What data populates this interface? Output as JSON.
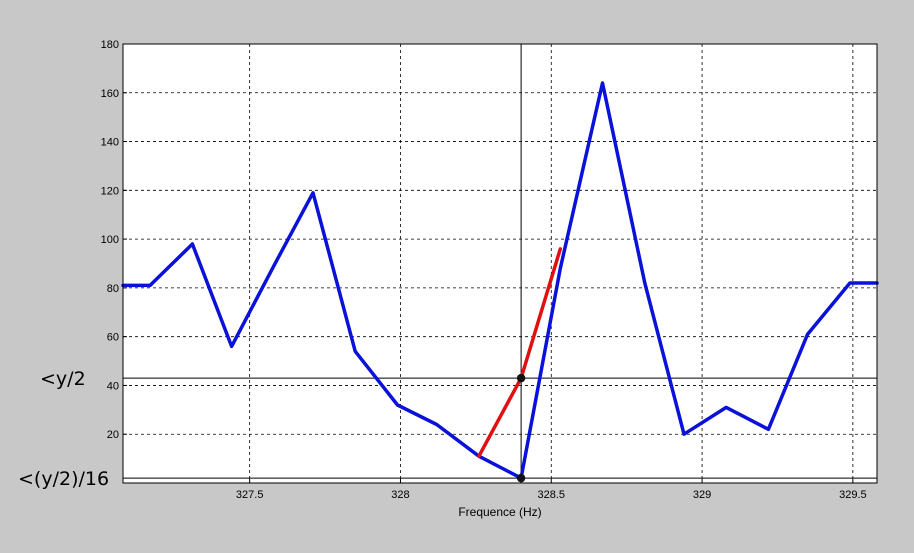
{
  "chart_data": {
    "type": "line",
    "title": "",
    "xlabel": "Frequence (Hz)",
    "ylabel": "",
    "xlim": [
      327.08,
      329.58
    ],
    "ylim": [
      0,
      180
    ],
    "xticks": [
      327.5,
      328,
      328.5,
      329,
      329.5
    ],
    "xtick_labels": [
      "327.5",
      "328",
      "328.5",
      "329",
      "329.5"
    ],
    "yticks": [
      20,
      40,
      60,
      80,
      100,
      120,
      140,
      160,
      180
    ],
    "ytick_labels": [
      "20",
      "40",
      "60",
      "80",
      "100",
      "120",
      "140",
      "160",
      "180"
    ],
    "grid": true,
    "series": [
      {
        "color": "#0a12d8",
        "x": [
          327.08,
          327.17,
          327.31,
          327.44,
          327.58,
          327.71,
          327.85,
          327.99,
          328.12,
          328.26,
          328.4,
          328.53,
          328.67,
          328.81,
          328.94,
          329.08,
          329.22,
          329.35,
          329.49,
          329.58
        ],
        "y": [
          81,
          81,
          98,
          56,
          89,
          119,
          54,
          32,
          24,
          11,
          2,
          88,
          164,
          82,
          20,
          31,
          22,
          61,
          82,
          82
        ]
      },
      {
        "color": "#e01010",
        "x": [
          328.26,
          328.4,
          328.53
        ],
        "y": [
          11,
          43,
          96
        ]
      }
    ],
    "reference_lines": {
      "vertical_x": 328.4,
      "horizontal_y": [
        43,
        2
      ]
    },
    "markers": [
      {
        "x": 328.4,
        "y": 43
      },
      {
        "x": 328.4,
        "y": 2
      }
    ],
    "annotations": [
      "<y/2",
      "<(y/2)/16"
    ]
  }
}
